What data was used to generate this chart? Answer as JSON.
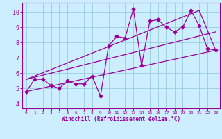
{
  "bg_color": "#cceeff",
  "grid_color": "#99ccdd",
  "line_color": "#990099",
  "marker": "D",
  "markersize": 2.5,
  "linewidth": 0.9,
  "xlabel": "Windchill (Refroidissement éolien,°C)",
  "ylabel_ticks": [
    4,
    5,
    6,
    7,
    8,
    9,
    10
  ],
  "xlim": [
    -0.5,
    23.5
  ],
  "ylim": [
    3.7,
    10.6
  ],
  "xticks": [
    0,
    1,
    2,
    3,
    4,
    5,
    6,
    7,
    8,
    9,
    10,
    11,
    12,
    13,
    14,
    15,
    16,
    17,
    18,
    19,
    20,
    21,
    22,
    23
  ],
  "series1_x": [
    0,
    1,
    2,
    3,
    4,
    5,
    6,
    7,
    8,
    9,
    10,
    11,
    12,
    13,
    14,
    15,
    16,
    17,
    18,
    19,
    20,
    21,
    22,
    23
  ],
  "series1_y": [
    4.8,
    5.6,
    5.6,
    5.2,
    5.0,
    5.5,
    5.3,
    5.3,
    5.8,
    4.5,
    7.8,
    8.4,
    8.3,
    10.2,
    6.5,
    9.4,
    9.5,
    9.0,
    8.7,
    9.0,
    10.1,
    9.1,
    7.6,
    7.5
  ],
  "series2_x": [
    0,
    23
  ],
  "series2_y": [
    4.8,
    7.5
  ],
  "series3_x": [
    0,
    23
  ],
  "series3_y": [
    5.6,
    8.7
  ],
  "series4_x": [
    0,
    21,
    23
  ],
  "series4_y": [
    5.6,
    10.1,
    7.5
  ]
}
